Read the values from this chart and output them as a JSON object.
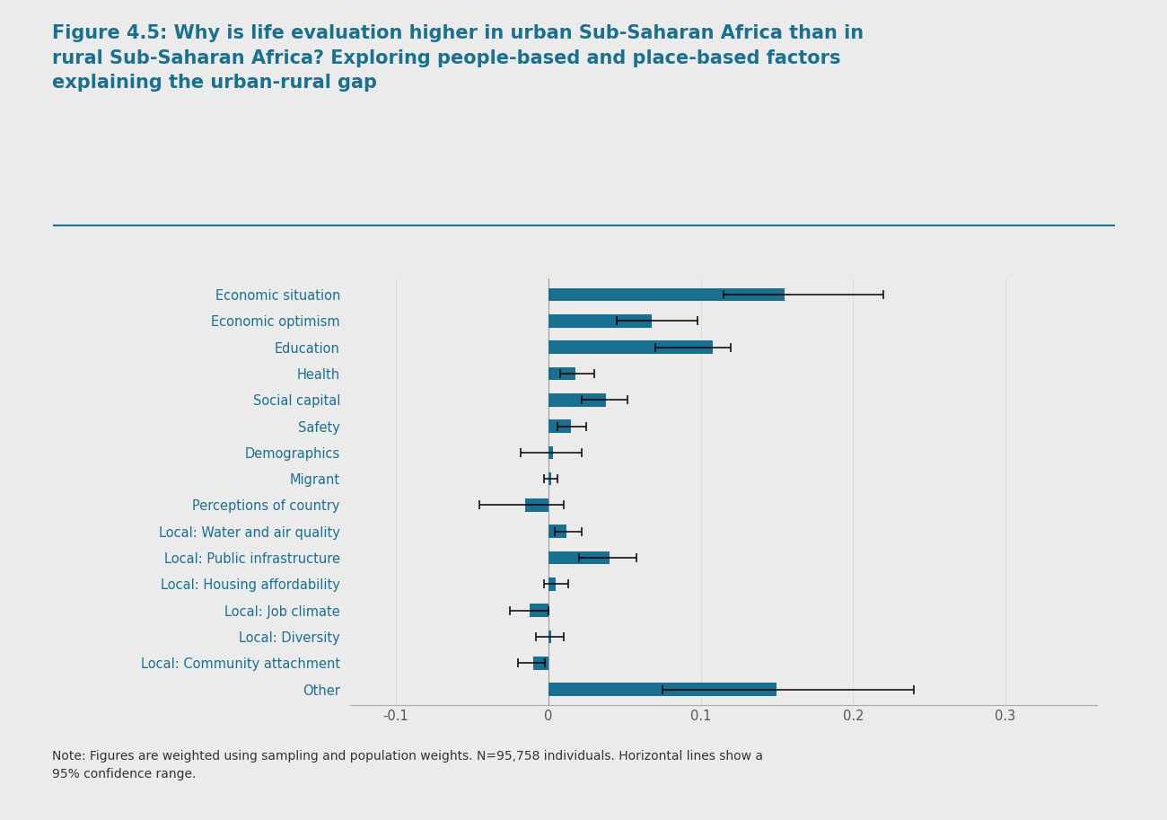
{
  "categories": [
    "Economic situation",
    "Economic optimism",
    "Education",
    "Health",
    "Social capital",
    "Safety",
    "Demographics",
    "Migrant",
    "Perceptions of country",
    "Local: Water and air quality",
    "Local: Public infrastructure",
    "Local: Housing affordability",
    "Local: Job climate",
    "Local: Diversity",
    "Local: Community attachment",
    "Other"
  ],
  "values": [
    0.155,
    0.068,
    0.108,
    0.018,
    0.038,
    0.015,
    0.003,
    0.002,
    -0.015,
    0.012,
    0.04,
    0.005,
    -0.012,
    0.002,
    -0.01,
    0.15
  ],
  "ci_lower": [
    0.115,
    0.045,
    0.07,
    0.008,
    0.022,
    0.006,
    -0.018,
    -0.003,
    -0.045,
    0.004,
    0.02,
    -0.003,
    -0.025,
    -0.008,
    -0.02,
    0.075
  ],
  "ci_upper": [
    0.22,
    0.098,
    0.12,
    0.03,
    0.052,
    0.025,
    0.022,
    0.006,
    0.01,
    0.022,
    0.058,
    0.013,
    0.0,
    0.01,
    -0.002,
    0.24
  ],
  "bar_color": "#1a7090",
  "background_color": "#ebebeb",
  "title_line1": "Figure 4.5: Why is life evaluation higher in urban Sub-Saharan Africa than in",
  "title_line2": "rural Sub-Saharan Africa? Exploring people-based and place-based factors",
  "title_line3": "explaining the urban-rural gap",
  "title_color": "#1a7090",
  "label_color": "#1a7090",
  "note_text": "Note: Figures are weighted using sampling and population weights. N=95,758 individuals. Horizontal lines show a\n95% confidence range.",
  "xlim": [
    -0.13,
    0.36
  ],
  "xticks": [
    -0.1,
    0.0,
    0.1,
    0.2,
    0.3
  ],
  "xtick_labels": [
    "-0.1",
    "0",
    "0.1",
    "0.2",
    "0.3"
  ]
}
